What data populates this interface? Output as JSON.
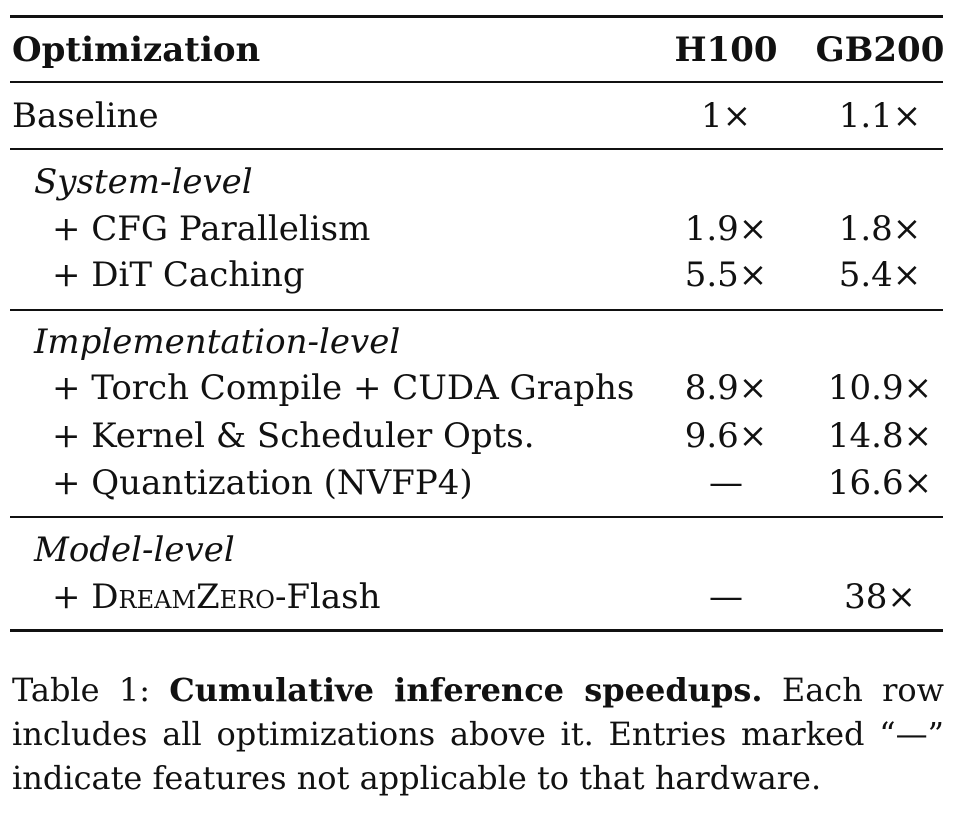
{
  "table": {
    "header": {
      "col1": "Optimization",
      "col2": "H100",
      "col3": "GB200"
    },
    "baseline": {
      "label": "Baseline",
      "h100": "1×",
      "gb200": "1.1×"
    },
    "sections": [
      {
        "title": "System-level",
        "rows": [
          {
            "label": "+ CFG Parallelism",
            "h100": "1.9×",
            "gb200": "1.8×"
          },
          {
            "label": "+ DiT Caching",
            "h100": "5.5×",
            "gb200": "5.4×"
          }
        ]
      },
      {
        "title": "Implementation-level",
        "rows": [
          {
            "label": "+ Torch Compile + CUDA Graphs",
            "h100": "8.9×",
            "gb200": "10.9×"
          },
          {
            "label": "+ Kernel & Scheduler Opts.",
            "h100": "9.6×",
            "gb200": "14.8×"
          },
          {
            "label": "+ Quantization (NVFP4)",
            "h100": "—",
            "gb200": "16.6×"
          }
        ]
      },
      {
        "title": "Model-level",
        "rows": [
          {
            "label_prefix": "+ ",
            "label_name": "DreamZero",
            "label_suffix": "-Flash",
            "h100": "—",
            "gb200": "38×"
          }
        ]
      }
    ]
  },
  "caption": {
    "lead": "Table 1: ",
    "bold": "Cumulative inference speedups.",
    "rest": " Each row includes all optimizations above it. Entries marked “—” indicate features not applicable to that hardware."
  }
}
